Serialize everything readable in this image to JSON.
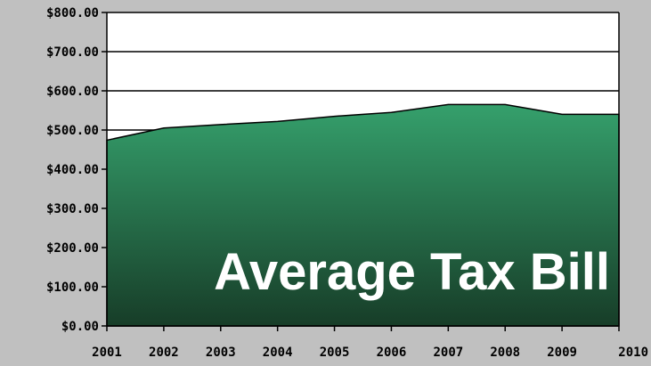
{
  "chart_data": {
    "type": "area",
    "title": "Average Tax Bill",
    "xlabel": "",
    "ylabel": "",
    "x": [
      "2001",
      "2002",
      "2003",
      "2004",
      "2005",
      "2006",
      "2007",
      "2008",
      "2009",
      "2010"
    ],
    "series": [
      {
        "values": [
          474,
          505,
          514,
          522,
          535,
          545,
          565,
          565,
          540,
          540
        ]
      }
    ],
    "ylim": [
      0,
      800
    ],
    "y_ticks": [
      "$0.00",
      "$100.00",
      "$200.00",
      "$300.00",
      "$400.00",
      "$500.00",
      "$600.00",
      "$700.00",
      "$800.00"
    ],
    "grid": true,
    "legend": "none",
    "colors": {
      "background": "#c0c0c0",
      "plot_background": "#ffffff",
      "area_top": "#35a06c",
      "area_bottom": "#173d28",
      "title_text": "#ffffff"
    }
  }
}
